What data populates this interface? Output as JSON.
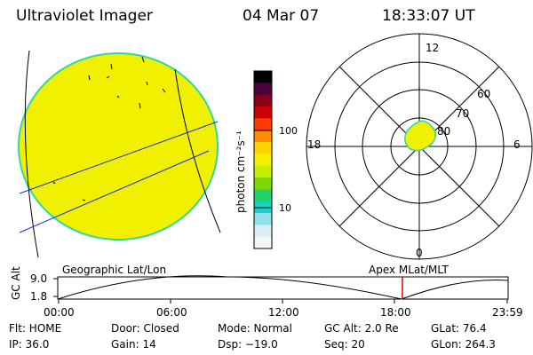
{
  "header": {
    "title": "Ultraviolet Imager",
    "date": "04 Mar 07",
    "time": "18:33:07 UT"
  },
  "colorbar": {
    "unit_label": "photon cm⁻²s⁻¹",
    "ticks": [
      "100",
      "10"
    ],
    "colors": [
      "#000000",
      "#4b0040",
      "#8a0018",
      "#c80000",
      "#ff3a00",
      "#ff8c00",
      "#ffd200",
      "#f2f200",
      "#c4f000",
      "#7cd800",
      "#24d06a",
      "#18d0c8",
      "#90e0ec",
      "#d8eef2",
      "#f2f6f6"
    ]
  },
  "polar": {
    "hour_labels": {
      "top": "12",
      "left": "18",
      "right": "6",
      "bottom": "0"
    },
    "lat_labels": [
      "60",
      "70",
      "80"
    ]
  },
  "timeline": {
    "map_mode_left": "Geographic Lat/Lon",
    "map_mode_right": "Apex MLat/MLT",
    "y_axis_label": "GC Alt",
    "y_ticks": [
      "9.0",
      "1.8"
    ],
    "x_ticks": [
      "00:00",
      "06:00",
      "12:00",
      "18:00",
      "23:59"
    ],
    "current_marker_color": "#e00000"
  },
  "footer": {
    "row1": {
      "flt": "Flt: HOME",
      "door": "Door: Closed",
      "mode": "Mode: Normal",
      "gcalt": "GC Alt: 2.0 Re",
      "glat": "GLat:  76.4"
    },
    "row2": {
      "ip": "IP: 36.0",
      "gain": "Gain: 14",
      "dsp": "Dsp:  −19.0",
      "seq": "Seq: 20",
      "glon": "GLon: 264.3"
    }
  },
  "colors": {
    "image_fill": "#f0f000",
    "image_edge": "#30d8a0",
    "grid_line": "#1030d0"
  }
}
